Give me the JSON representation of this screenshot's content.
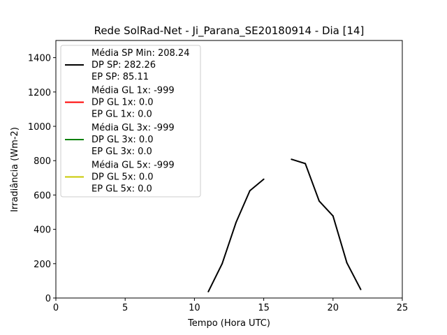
{
  "chart_data": {
    "type": "line",
    "title": "Rede SolRad-Net - Ji_Parana_SE20180914 - Dia [14]",
    "xlabel": "Tempo (Hora UTC)",
    "ylabel": "Irradiância (Wm-2)",
    "xlim": [
      0,
      25
    ],
    "ylim": [
      0,
      1500
    ],
    "xticks": [
      "0",
      "5",
      "10",
      "15",
      "20",
      "25"
    ],
    "yticks": [
      "0",
      "200",
      "400",
      "600",
      "800",
      "1000",
      "1200",
      "1400"
    ],
    "grid": false,
    "legend_position": "top-left",
    "series": [
      {
        "color": "#000000",
        "legend": [
          "Média SP Min: 208.24",
          "DP SP: 282.26",
          "EP SP: 85.11"
        ],
        "segments": [
          [
            [
              11,
              37
            ],
            [
              12,
              200
            ],
            [
              13,
              440
            ],
            [
              14,
              625
            ],
            [
              15,
              692
            ]
          ],
          [
            [
              17,
              808
            ],
            [
              18,
              783
            ],
            [
              19,
              565
            ],
            [
              20,
              478
            ],
            [
              21,
              205
            ],
            [
              22,
              50
            ]
          ]
        ]
      },
      {
        "color": "#ff0000",
        "legend": [
          "Média GL 1x: -999",
          "DP GL 1x: 0.0",
          "EP GL 1x: 0.0"
        ],
        "segments": []
      },
      {
        "color": "#008000",
        "legend": [
          "Média GL 3x: -999",
          "DP GL 3x: 0.0",
          "EP GL 3x: 0.0"
        ],
        "segments": []
      },
      {
        "color": "#c8c800",
        "legend": [
          "Média GL 5x: -999",
          "DP GL 5x: 0.0",
          "EP GL 5x: 0.0"
        ],
        "segments": []
      }
    ]
  }
}
